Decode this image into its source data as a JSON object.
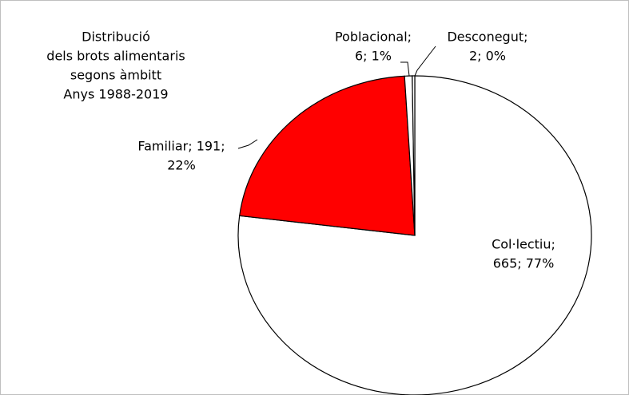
{
  "chart_data": {
    "type": "pie",
    "title": [
      "Distribució",
      "dels brots alimentaris",
      "segons àmbitt",
      "Anys 1988-2019"
    ],
    "values": [
      665,
      191,
      6,
      2
    ],
    "value_labels": [
      [
        "Col·lectiu;",
        "665; 77%"
      ],
      [
        "Familiar; 191;",
        "22%"
      ],
      [
        "Poblacional;",
        "6; 1%"
      ],
      [
        "Desconegut;",
        "2; 0%"
      ]
    ],
    "colors": [
      "#ffffff",
      "#ff0000",
      "#ffffff",
      "#ffffff"
    ]
  }
}
